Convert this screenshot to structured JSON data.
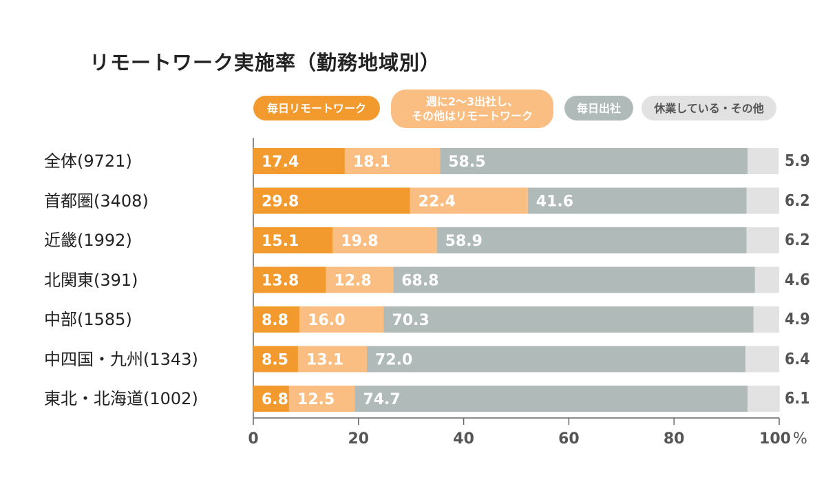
{
  "chart_data": {
    "type": "bar",
    "orientation": "horizontal-stacked",
    "title": "リモートワーク実施率（勤務地域別）",
    "xlabel": "",
    "ylabel": "",
    "xlim": [
      0,
      100
    ],
    "x_ticks": [
      "0",
      "20",
      "40",
      "60",
      "80",
      "100"
    ],
    "unit_label": "%",
    "legend_position": "top",
    "categories": [
      "全体(9721)",
      "首都圏(3408)",
      "近畿(1992)",
      "北関東(391)",
      "中部(1585)",
      "中四国・九州(1343)",
      "東北・北海道(1002)"
    ],
    "series": [
      {
        "name": "毎日リモートワーク",
        "color": "#F29A2E",
        "values": [
          17.4,
          29.8,
          15.1,
          13.8,
          8.8,
          8.5,
          6.8
        ]
      },
      {
        "name": "週に2〜3出社し、\nその他はリモートワーク",
        "color": "#FBBE82",
        "values": [
          18.1,
          22.4,
          19.8,
          12.8,
          16.0,
          13.1,
          12.5
        ]
      },
      {
        "name": "毎日出社",
        "color": "#B0BAB9",
        "values": [
          58.5,
          41.6,
          58.9,
          68.8,
          70.3,
          72.0,
          74.7
        ]
      },
      {
        "name": "休業している・その他",
        "color": "#E2E2E2",
        "values": [
          5.9,
          6.2,
          6.2,
          4.6,
          4.9,
          6.4,
          6.1
        ]
      }
    ]
  }
}
